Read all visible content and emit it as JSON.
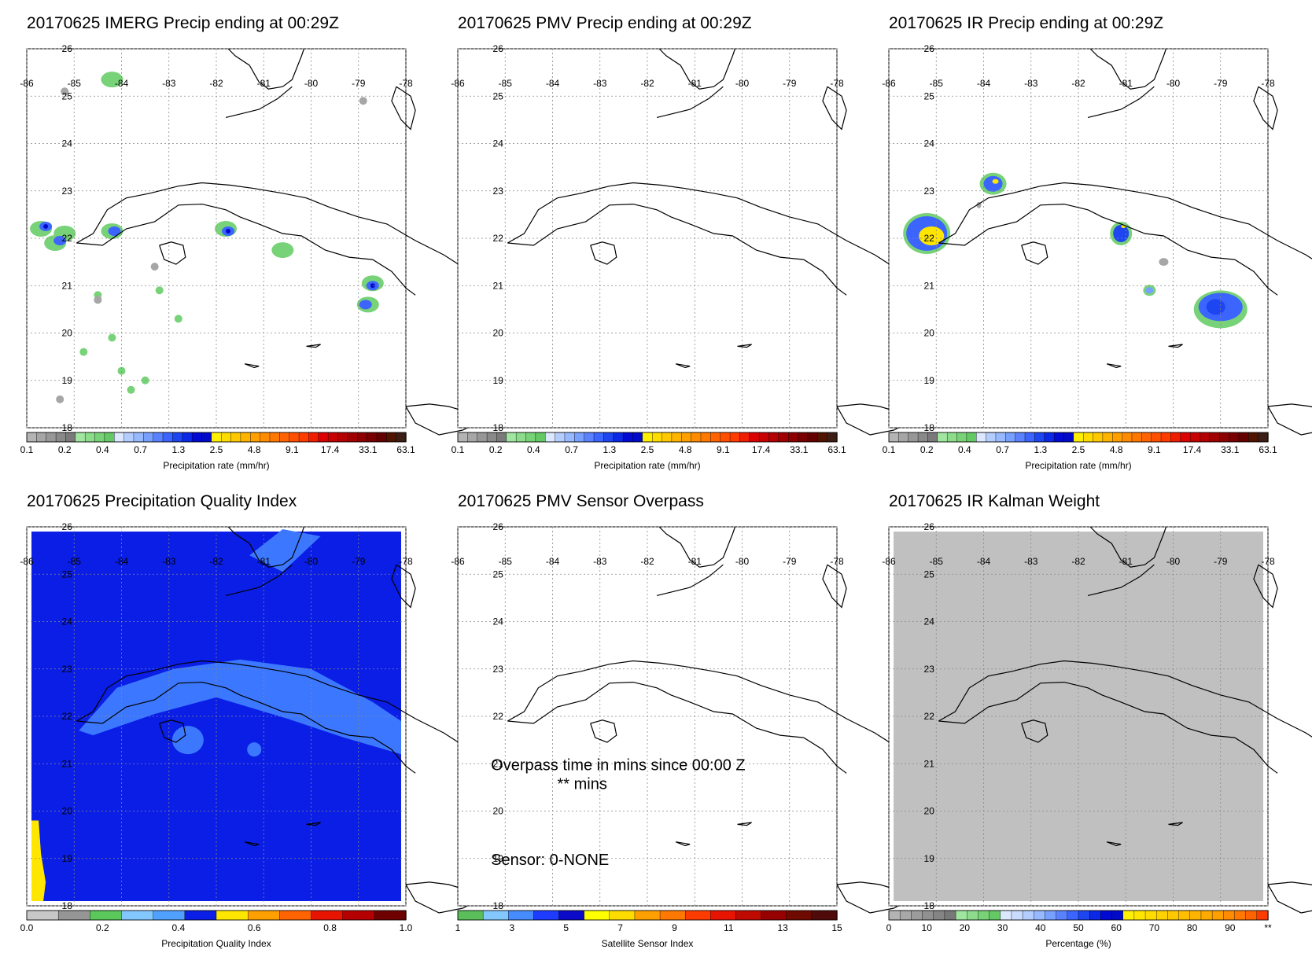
{
  "colors": {
    "precip_scale": [
      "#b4b4b4",
      "#a6a6a6",
      "#979797",
      "#898989",
      "#7a7a7a",
      "#a0e6a0",
      "#8cdc8c",
      "#78d278",
      "#64c864",
      "#dce8ff",
      "#b4cdff",
      "#96b9ff",
      "#78a0ff",
      "#5a82ff",
      "#3c64ff",
      "#1e46f0",
      "#0a28e6",
      "#000ad2",
      "#000ac8",
      "#fff000",
      "#ffdc00",
      "#ffc800",
      "#ffb400",
      "#ffa000",
      "#ff8c00",
      "#ff7800",
      "#ff6400",
      "#ff5000",
      "#ff3c00",
      "#f01e00",
      "#dc0000",
      "#c80000",
      "#b40000",
      "#a00000",
      "#8c0000",
      "#780000",
      "#640000",
      "#501400",
      "#3c1e14"
    ],
    "quality_scale": [
      "#c8c8c8",
      "#969696",
      "#5ac85a",
      "#82c8ff",
      "#50a0ff",
      "#0a1ee6",
      "#ffe600",
      "#ffa000",
      "#ff6400",
      "#e61400",
      "#b40000",
      "#6e0000"
    ],
    "sensor_scale": [
      "#5abe5a",
      "#82c8ff",
      "#468cff",
      "#1e3cff",
      "#0a0ac8",
      "#ffff00",
      "#ffdc00",
      "#ffa000",
      "#ff7800",
      "#ff3c00",
      "#e61400",
      "#be0a00",
      "#960000",
      "#6e0a00",
      "#500a0a"
    ],
    "kalman_scale": [
      "#b4b4b4",
      "#a8a8a8",
      "#9c9c9c",
      "#909090",
      "#848484",
      "#787878",
      "#a0e6a0",
      "#8cdc8c",
      "#78d278",
      "#64c864",
      "#dce8ff",
      "#c8dcff",
      "#b4cdff",
      "#96b9ff",
      "#78a0ff",
      "#5a82ff",
      "#3c64ff",
      "#1e46f0",
      "#0a28e6",
      "#000ad2",
      "#000ac8",
      "#fff000",
      "#ffe600",
      "#ffdc00",
      "#ffd200",
      "#ffc800",
      "#ffbe00",
      "#ffb400",
      "#ffaa00",
      "#ffa000",
      "#ff8c00",
      "#ff7800",
      "#ff6400",
      "#ff3c00"
    ],
    "quality_blue": "#0a1ee6",
    "quality_light_blue": "#3c78ff",
    "quality_yellow": "#ffe600",
    "kalman_gray": "#c0c0c0"
  },
  "map": {
    "lon_ticks": [
      "-86",
      "-85",
      "-84",
      "-83",
      "-82",
      "-81",
      "-80",
      "-79",
      "-78"
    ],
    "lat_ticks": [
      "26",
      "25",
      "24",
      "23",
      "22",
      "21",
      "20",
      "19",
      "18"
    ],
    "lon_range": [
      -86,
      -78
    ],
    "lat_range": [
      18,
      26
    ]
  },
  "chart_data": [
    {
      "type": "heatmap",
      "title": "20170625 IMERG Precip ending at 00:29Z",
      "xlabel": "",
      "ylabel": "",
      "colorbar_label": "Precipitation rate (mm/hr)",
      "colorbar_ticks": [
        "0.1",
        "0.2",
        "0.4",
        "0.7",
        "1.3",
        "2.5",
        "4.8",
        "9.1",
        "17.4",
        "33.1",
        "63.1"
      ],
      "scale": "precip"
    },
    {
      "type": "heatmap",
      "title": "20170625 PMV Precip ending at 00:29Z",
      "xlabel": "",
      "ylabel": "",
      "colorbar_label": "Precipitation rate (mm/hr)",
      "colorbar_ticks": [
        "0.1",
        "0.2",
        "0.4",
        "0.7",
        "1.3",
        "2.5",
        "4.8",
        "9.1",
        "17.4",
        "33.1",
        "63.1"
      ],
      "scale": "precip"
    },
    {
      "type": "heatmap",
      "title": "20170625 IR Precip ending at 00:29Z",
      "xlabel": "",
      "ylabel": "",
      "colorbar_label": "Precipitation rate (mm/hr)",
      "colorbar_ticks": [
        "0.1",
        "0.2",
        "0.4",
        "0.7",
        "1.3",
        "2.5",
        "4.8",
        "9.1",
        "17.4",
        "33.1",
        "63.1"
      ],
      "scale": "precip"
    },
    {
      "type": "heatmap",
      "title": "20170625 Precipitation Quality Index",
      "xlabel": "",
      "ylabel": "",
      "colorbar_label": "Precipitation Quality Index",
      "colorbar_ticks": [
        "0.0",
        "0.2",
        "0.4",
        "0.6",
        "0.8",
        "1.0"
      ],
      "scale": "quality"
    },
    {
      "type": "heatmap",
      "title": "20170625 PMV Sensor Overpass",
      "xlabel": "",
      "ylabel": "",
      "colorbar_label": "Satellite Sensor Index",
      "colorbar_ticks": [
        "1",
        "3",
        "5",
        "7",
        "9",
        "11",
        "13",
        "15"
      ],
      "scale": "sensor",
      "annotations": [
        "Overpass time in mins since 00:00 Z",
        "** mins",
        "Sensor:   0-NONE"
      ]
    },
    {
      "type": "heatmap",
      "title": "20170625 IR Kalman Weight",
      "xlabel": "",
      "ylabel": "",
      "colorbar_label": "Percentage (%)",
      "colorbar_ticks": [
        "0",
        "10",
        "20",
        "30",
        "40",
        "50",
        "60",
        "70",
        "80",
        "90",
        "**"
      ],
      "scale": "kalman"
    }
  ]
}
